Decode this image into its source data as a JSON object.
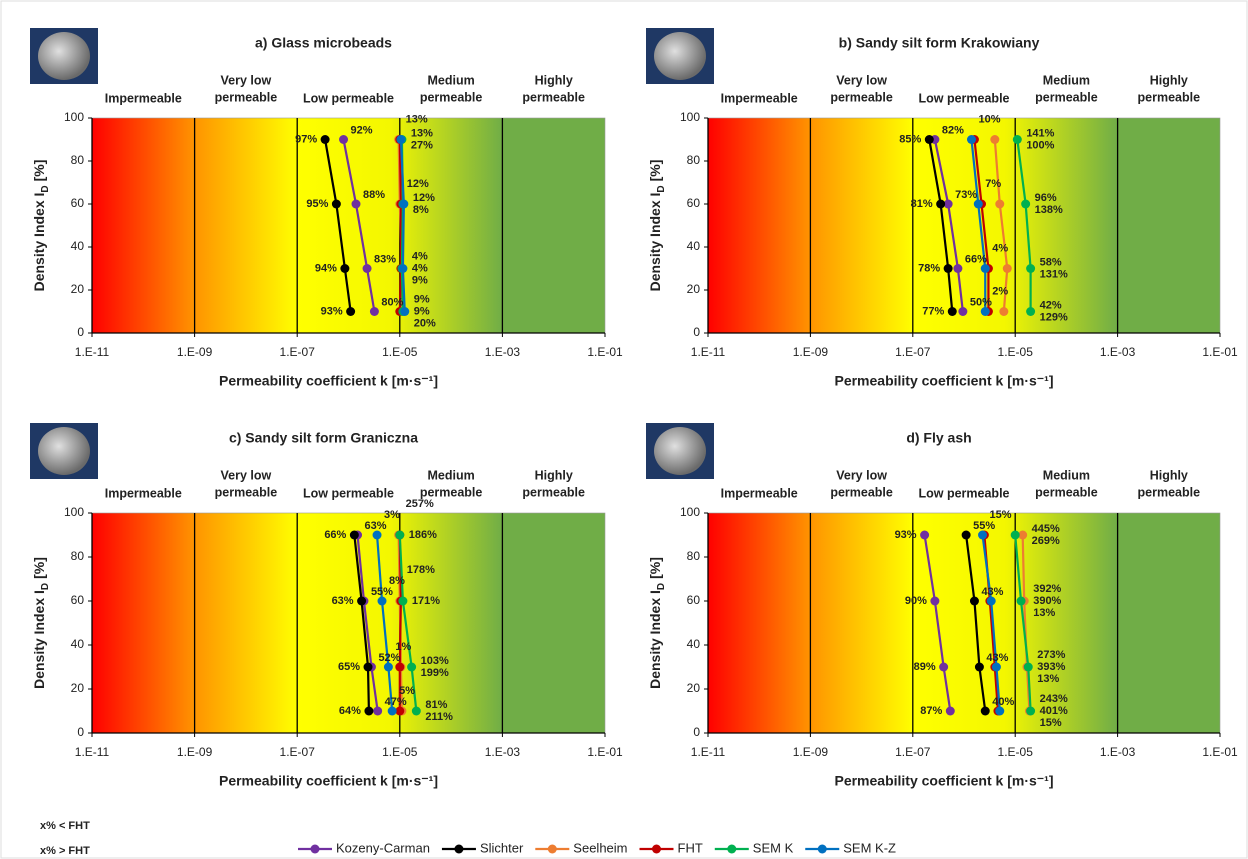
{
  "chart_data": [
    {
      "type": "line",
      "title": "a)  Glass microbeads",
      "xscale": "log",
      "xlim": [
        1e-11,
        0.1
      ],
      "ylim": [
        0,
        100
      ],
      "xticks": [
        {
          "value": 1e-11,
          "label": "1.E-11"
        },
        {
          "value": 1e-09,
          "label": "1.E-09"
        },
        {
          "value": 1e-07,
          "label": "1.E-07"
        },
        {
          "value": 1e-05,
          "label": "1.E-05"
        },
        {
          "value": 0.001,
          "label": "1.E-03"
        },
        {
          "value": 0.1,
          "label": "1.E-01"
        }
      ],
      "yticks": [
        0,
        20,
        40,
        60,
        80,
        100
      ],
      "x_label": "Permeability coefficient k [m·s⁻¹]",
      "y_label": [
        "Density Index I",
        "D",
        "[%]"
      ],
      "zones": [
        [
          "Impermeable"
        ],
        [
          "Very low",
          "permeable"
        ],
        [
          "Low permeable"
        ],
        [
          "Medium",
          "permeable"
        ],
        [
          "Highly",
          "permeable"
        ]
      ],
      "zone_edges": [
        1e-09,
        1e-07,
        1e-05,
        0.001
      ],
      "series": [
        {
          "name": "Kozeny-Carman",
          "color": "#7030a0",
          "x": [
            3.2e-06,
            2.3e-06,
            1.4e-06,
            8e-07
          ],
          "values": [
            10,
            30,
            60,
            90
          ],
          "point_labels": [
            "80%",
            "83%",
            "88%",
            "92%"
          ],
          "point_label_colors": [
            "#2e8bc0",
            "#2e8bc0",
            "#2e8bc0",
            "#2e8bc0"
          ]
        },
        {
          "name": "Slichter",
          "color": "#000000",
          "x": [
            1.1e-06,
            8.5e-07,
            5.8e-07,
            3.5e-07
          ],
          "values": [
            10,
            30,
            60,
            90
          ],
          "point_labels": [
            "93%",
            "94%",
            "95%",
            "97%"
          ],
          "point_label_colors": [
            "#2e8bc0",
            "#2e8bc0",
            "#2e8bc0",
            "#2e8bc0"
          ]
        },
        {
          "name": "Seelheim",
          "color": "#ed7d31",
          "x": [
            1.05e-05,
            1.1e-05,
            1e-05,
            9.5e-06
          ],
          "values": [
            10,
            30,
            60,
            90
          ],
          "point_labels": [
            "9%",
            "4%",
            "12%",
            "13%"
          ],
          "point_label_colors": [
            "#c00000",
            "#c00000",
            "#c00000",
            "#c00000"
          ]
        },
        {
          "name": "FHT",
          "color": "#c00000",
          "x": [
            1e-05,
            1.05e-05,
            1.05e-05,
            1e-05
          ],
          "values": [
            10,
            30,
            60,
            90
          ]
        },
        {
          "name": "SEM K",
          "color": "#00b050",
          "x": [
            1.15e-05,
            1.1e-05,
            1.15e-05,
            1.1e-05
          ],
          "values": [
            10,
            30,
            60,
            90
          ],
          "point_labels": [
            "9%",
            "4%",
            "12%",
            "13%"
          ],
          "point_label_colors": [
            "#c00000",
            "#c00000",
            "#c00000",
            "#c00000"
          ]
        },
        {
          "name": "SEM K-Z",
          "color": "#0070c0",
          "x": [
            1.25e-05,
            1.15e-05,
            1.2e-05,
            1.05e-05
          ],
          "values": [
            10,
            30,
            60,
            90
          ],
          "point_labels": [
            "20%",
            "9%",
            "8%",
            "27%"
          ],
          "point_label_colors": [
            "#2e8bc0",
            "#2e8bc0",
            "#c00000",
            "#c00000"
          ]
        }
      ]
    },
    {
      "type": "line",
      "title": "b)  Sandy silt form Krakowiany",
      "xscale": "log",
      "xlim": [
        1e-11,
        0.1
      ],
      "ylim": [
        0,
        100
      ],
      "xticks": [
        {
          "value": 1e-11,
          "label": "1.E-11"
        },
        {
          "value": 1e-09,
          "label": "1.E-09"
        },
        {
          "value": 1e-07,
          "label": "1.E-07"
        },
        {
          "value": 1e-05,
          "label": "1.E-05"
        },
        {
          "value": 0.001,
          "label": "1.E-03"
        },
        {
          "value": 0.1,
          "label": "1.E-01"
        }
      ],
      "yticks": [
        0,
        20,
        40,
        60,
        80,
        100
      ],
      "x_label": "Permeability coefficient k [m·s⁻¹]",
      "y_label": [
        "Density Index I",
        "D",
        "[%]"
      ],
      "zones": [
        [
          "Impermeable"
        ],
        [
          "Very low",
          "permeable"
        ],
        [
          "Low permeable"
        ],
        [
          "Medium",
          "permeable"
        ],
        [
          "Highly",
          "permeable"
        ]
      ],
      "zone_edges": [
        1e-09,
        1e-07,
        1e-05,
        0.001
      ],
      "series": [
        {
          "name": "Kozeny-Carman",
          "color": "#7030a0",
          "x": [
            9.5e-07,
            7.6e-07,
            4.9e-07,
            2.7e-07
          ],
          "values": [
            10,
            30,
            60,
            90
          ],
          "point_labels": [
            "50%",
            "66%",
            "73%",
            "82%"
          ],
          "point_label_colors": [
            "#2e8bc0",
            "#2e8bc0",
            "#2e8bc0",
            "#2e8bc0"
          ]
        },
        {
          "name": "Slichter",
          "color": "#000000",
          "x": [
            5.9e-07,
            4.9e-07,
            3.5e-07,
            2.1e-07
          ],
          "values": [
            10,
            30,
            60,
            90
          ],
          "point_labels": [
            "77%",
            "78%",
            "81%",
            "85%"
          ],
          "point_label_colors": [
            "#2e8bc0",
            "#2e8bc0",
            "#2e8bc0",
            "#2e8bc0"
          ]
        },
        {
          "name": "Seelheim",
          "color": "#ed7d31",
          "x": [
            6e-06,
            7e-06,
            5e-06,
            4e-06
          ],
          "values": [
            10,
            30,
            60,
            90
          ],
          "point_labels": [
            "42%",
            "58%",
            "96%",
            "141%"
          ],
          "point_label_colors": [
            "#c00000",
            "#c00000",
            "#c00000",
            "#c00000"
          ]
        },
        {
          "name": "FHT",
          "color": "#c00000",
          "x": [
            3e-06,
            3e-06,
            2.2e-06,
            1.6e-06
          ],
          "values": [
            10,
            30,
            60,
            90
          ]
        },
        {
          "name": "SEM K",
          "color": "#00b050",
          "x": [
            2e-05,
            2e-05,
            1.6e-05,
            1.1e-05
          ],
          "values": [
            10,
            30,
            60,
            90
          ],
          "point_labels": [
            "129%",
            "131%",
            "138%",
            "100%"
          ],
          "point_label_colors": [
            "#c00000",
            "#c00000",
            "#c00000",
            "#c00000"
          ]
        },
        {
          "name": "SEM K-Z",
          "color": "#0070c0",
          "x": [
            2.6e-06,
            2.6e-06,
            1.9e-06,
            1.4e-06
          ],
          "values": [
            10,
            30,
            60,
            90
          ],
          "point_labels": [
            "2%",
            "4%",
            "7%",
            "10%"
          ],
          "point_label_colors": [
            "#c00000",
            "#c00000",
            "#c00000",
            "#2e8bc0"
          ]
        }
      ]
    },
    {
      "type": "line",
      "title": "c)  Sandy silt form Graniczna",
      "xscale": "log",
      "xlim": [
        1e-11,
        0.1
      ],
      "ylim": [
        0,
        100
      ],
      "xticks": [
        {
          "value": 1e-11,
          "label": "1.E-11"
        },
        {
          "value": 1e-09,
          "label": "1.E-09"
        },
        {
          "value": 1e-07,
          "label": "1.E-07"
        },
        {
          "value": 1e-05,
          "label": "1.E-05"
        },
        {
          "value": 0.001,
          "label": "1.E-03"
        },
        {
          "value": 0.1,
          "label": "1.E-01"
        }
      ],
      "yticks": [
        0,
        20,
        40,
        60,
        80,
        100
      ],
      "x_label": "Permeability coefficient k [m·s⁻¹]",
      "y_label": [
        "Density Index I",
        "D",
        "[%]"
      ],
      "zones": [
        [
          "Impermeable"
        ],
        [
          "Very low",
          "permeable"
        ],
        [
          "Low permeable"
        ],
        [
          "Medium",
          "permeable"
        ],
        [
          "Highly",
          "permeable"
        ]
      ],
      "zone_edges": [
        1e-09,
        1e-07,
        1e-05,
        0.001
      ],
      "series": [
        {
          "name": "Kozeny-Carman",
          "color": "#7030a0",
          "x": [
            3.7e-06,
            2.8e-06,
            2e-06,
            1.5e-06
          ],
          "values": [
            10,
            30,
            60,
            90
          ],
          "point_labels": [
            "47%",
            "52%",
            "55%",
            "63%"
          ],
          "point_label_colors": [
            "#2e8bc0",
            "#2e8bc0",
            "#2e8bc0",
            "#2e8bc0"
          ]
        },
        {
          "name": "Slichter",
          "color": "#000000",
          "x": [
            2.5e-06,
            2.4e-06,
            1.8e-06,
            1.3e-06
          ],
          "values": [
            10,
            30,
            60,
            90
          ],
          "point_labels": [
            "64%",
            "65%",
            "63%",
            "66%"
          ],
          "point_label_colors": [
            "#2e8bc0",
            "#2e8bc0",
            "#2e8bc0",
            "#2e8bc0"
          ]
        },
        {
          "name": "Seelheim",
          "color": "#ed7d31",
          "x": [
            1.1e-05,
            1.05e-05,
            1e-05,
            9.5e-06
          ],
          "values": [
            10,
            30,
            60,
            90
          ],
          "point_labels": [
            "81%",
            "103%",
            "178%",
            "257%"
          ],
          "point_label_colors": [
            "#c00000",
            "#c00000",
            "#c00000",
            "#c00000"
          ]
        },
        {
          "name": "FHT",
          "color": "#c00000",
          "x": [
            1e-05,
            1e-05,
            1.05e-05,
            1e-05
          ],
          "values": [
            10,
            30,
            60,
            90
          ]
        },
        {
          "name": "SEM K",
          "color": "#00b050",
          "x": [
            2.1e-05,
            1.7e-05,
            1.15e-05,
            1e-05
          ],
          "values": [
            10,
            30,
            60,
            90
          ],
          "point_labels": [
            "211%",
            "199%",
            "171%",
            "186%"
          ],
          "point_label_colors": [
            "#c00000",
            "#c00000",
            "#c00000",
            "#c00000"
          ]
        },
        {
          "name": "SEM K-Z",
          "color": "#0070c0",
          "x": [
            7.1e-06,
            6e-06,
            4.5e-06,
            3.6e-06
          ],
          "values": [
            10,
            30,
            60,
            90
          ],
          "point_labels": [
            "5%",
            "1%",
            "8%",
            "3%"
          ],
          "point_label_colors": [
            "#c00000",
            "#c00000",
            "#2e8bc0",
            "#2e8bc0"
          ]
        }
      ]
    },
    {
      "type": "line",
      "title": "d)  Fly ash",
      "xscale": "log",
      "xlim": [
        1e-11,
        0.1
      ],
      "ylim": [
        0,
        100
      ],
      "xticks": [
        {
          "value": 1e-11,
          "label": "1.E-11"
        },
        {
          "value": 1e-09,
          "label": "1.E-09"
        },
        {
          "value": 1e-07,
          "label": "1.E-07"
        },
        {
          "value": 1e-05,
          "label": "1.E-05"
        },
        {
          "value": 0.001,
          "label": "1.E-03"
        },
        {
          "value": 0.1,
          "label": "1.E-01"
        }
      ],
      "yticks": [
        0,
        20,
        40,
        60,
        80,
        100
      ],
      "x_label": "Permeability coefficient k [m·s⁻¹]",
      "y_label": [
        "Density Index I",
        "D",
        "[%]"
      ],
      "zones": [
        [
          "Impermeable"
        ],
        [
          "Very low",
          "permeable"
        ],
        [
          "Low permeable"
        ],
        [
          "Medium",
          "permeable"
        ],
        [
          "Highly",
          "permeable"
        ]
      ],
      "zone_edges": [
        1e-09,
        1e-07,
        1e-05,
        0.001
      ],
      "series": [
        {
          "name": "Kozeny-Carman",
          "color": "#7030a0",
          "x": [
            5.4e-07,
            4e-07,
            2.7e-07,
            1.7e-07
          ],
          "values": [
            10,
            30,
            60,
            90
          ],
          "point_labels": [
            "87%",
            "89%",
            "90%",
            "93%"
          ],
          "point_label_colors": [
            "#2e8bc0",
            "#2e8bc0",
            "#2e8bc0",
            "#2e8bc0"
          ]
        },
        {
          "name": "Slichter",
          "color": "#000000",
          "x": [
            2.6e-06,
            2e-06,
            1.6e-06,
            1.1e-06
          ],
          "values": [
            10,
            30,
            60,
            90
          ],
          "point_labels": [
            "40%",
            "43%",
            "43%",
            "55%"
          ],
          "point_label_colors": [
            "#2e8bc0",
            "#2e8bc0",
            "#2e8bc0",
            "#2e8bc0"
          ]
        },
        {
          "name": "Seelheim",
          "color": "#ed7d31",
          "x": [
            1.9e-05,
            1.7e-05,
            1.5e-05,
            1.4e-05
          ],
          "values": [
            10,
            30,
            60,
            90
          ],
          "point_labels": [
            "243%",
            "273%",
            "392%",
            "445%"
          ],
          "point_label_colors": [
            "#c00000",
            "#c00000",
            "#c00000",
            "#c00000"
          ]
        },
        {
          "name": "FHT",
          "color": "#c00000",
          "x": [
            4.6e-06,
            4e-06,
            3.2e-06,
            2.5e-06
          ],
          "values": [
            10,
            30,
            60,
            90
          ]
        },
        {
          "name": "SEM K",
          "color": "#00b050",
          "x": [
            2e-05,
            1.8e-05,
            1.3e-05,
            1e-05
          ],
          "values": [
            10,
            30,
            60,
            90
          ],
          "point_labels": [
            "401%",
            "393%",
            "390%",
            "269%"
          ],
          "point_label_colors": [
            "#c00000",
            "#c00000",
            "#c00000",
            "#c00000"
          ]
        },
        {
          "name": "SEM K-Z",
          "color": "#0070c0",
          "x": [
            5e-06,
            4.3e-06,
            3.4e-06,
            2.3e-06
          ],
          "values": [
            10,
            30,
            60,
            90
          ],
          "point_labels": [
            "15%",
            "13%",
            "13%",
            "15%"
          ],
          "point_label_colors": [
            "#c00000",
            "#c00000",
            "#c00000",
            "#2e8bc0"
          ]
        }
      ]
    }
  ],
  "label_key": [
    {
      "text": "x% < FHT",
      "color": "#2e8bc0"
    },
    {
      "text": "x% > FHT",
      "color": "#c00000"
    }
  ]
}
